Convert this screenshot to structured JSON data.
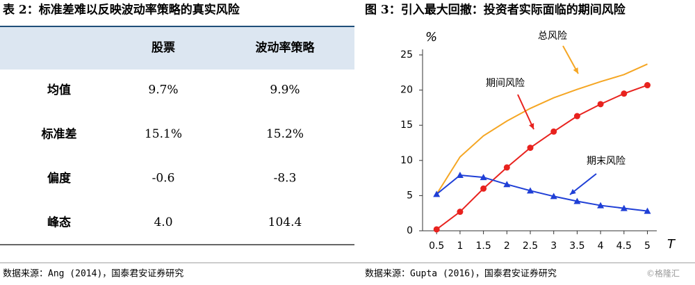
{
  "table": {
    "title": "表 2：标准差难以反映波动率策略的真实风险",
    "header": [
      "股票",
      "波动率策略"
    ],
    "rows": [
      [
        "均值",
        "9.7%",
        "9.9%"
      ],
      [
        "标准差",
        "15.1%",
        "15.2%"
      ],
      [
        "偏度",
        "-0.6",
        "-8.3"
      ],
      [
        "峰态",
        "4.0",
        "104.4"
      ]
    ],
    "source": "数据来源：Ang (2014)，国泰君安证券研究"
  },
  "chart_data": {
    "type": "line",
    "title": "图 3：引入最大回撤：投资者实际面临的期间风险",
    "x": [
      0.5,
      1,
      1.5,
      2,
      2.5,
      3,
      3.5,
      4,
      4.5,
      5
    ],
    "series": [
      {
        "name": "总风险",
        "color": "#f5a623",
        "values": [
          5.2,
          10.5,
          13.5,
          15.6,
          17.4,
          18.9,
          20.1,
          21.2,
          22.2,
          23.7
        ]
      },
      {
        "name": "期间风险",
        "color": "#e8221e",
        "marker": "circle",
        "values": [
          0.2,
          2.7,
          6.0,
          9.0,
          11.8,
          14.1,
          16.3,
          18.0,
          19.5,
          20.7
        ]
      },
      {
        "name": "期末风险",
        "color": "#1f3fd6",
        "marker": "triangle",
        "values": [
          5.2,
          7.9,
          7.6,
          6.6,
          5.7,
          4.9,
          4.2,
          3.6,
          3.2,
          2.8
        ]
      }
    ],
    "xlim": [
      0.2,
      5.2
    ],
    "xticks": [
      0.5,
      1,
      1.5,
      2,
      2.5,
      3,
      3.5,
      4,
      4.5,
      5
    ],
    "ylim": [
      0,
      25
    ],
    "yticks": [
      0,
      5,
      10,
      15,
      20,
      25
    ],
    "x_label": "T",
    "y_label": "%",
    "source": "数据来源：Gupta (2016)，国泰君安证券研究"
  },
  "watermark": "©格隆汇"
}
